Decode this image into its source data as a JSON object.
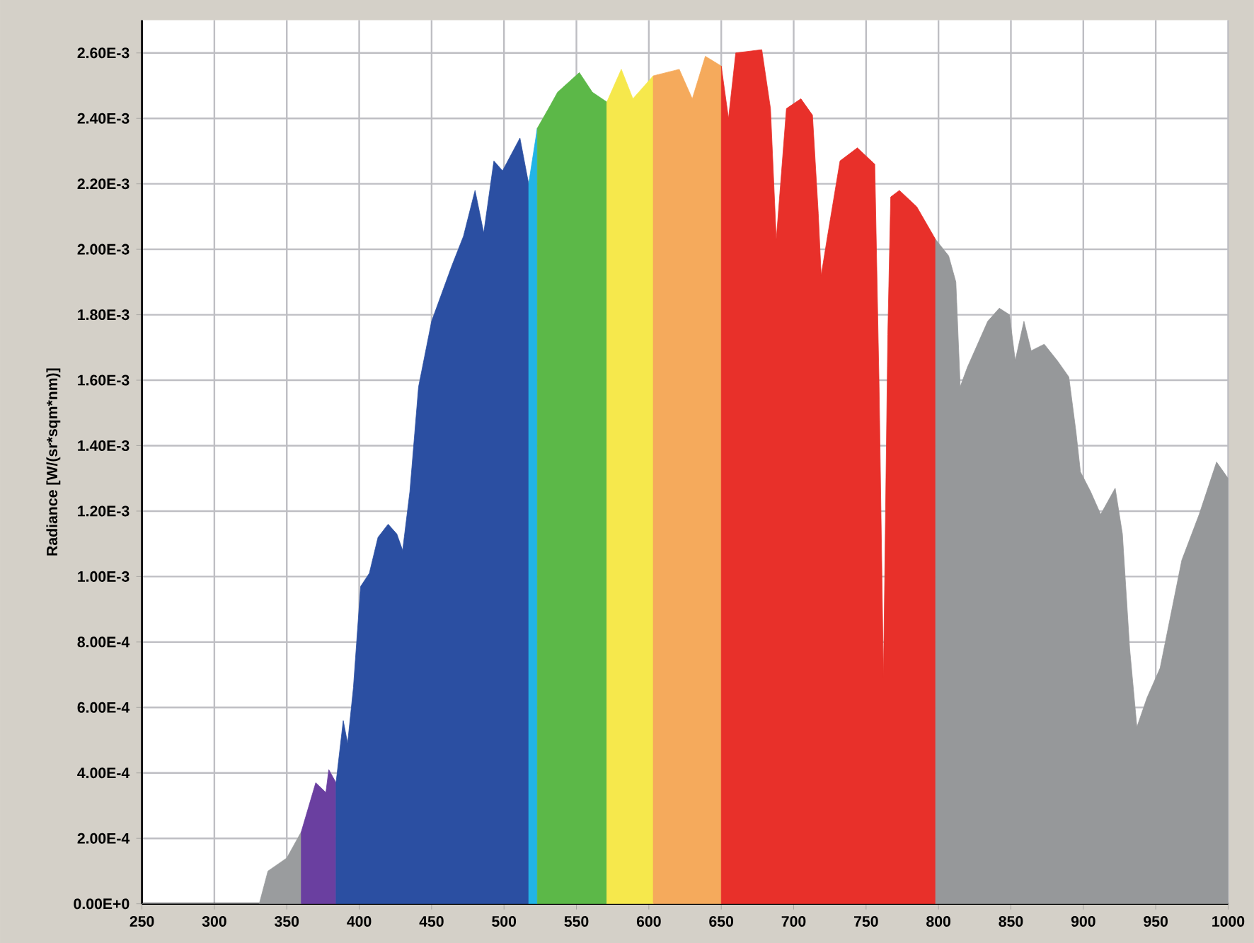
{
  "chart_data": {
    "type": "area",
    "ylabel": "Radiance [W/(sr*sqm*nm)]",
    "xlim": [
      250,
      1000
    ],
    "ylim": [
      0,
      0.0027
    ],
    "xticks": [
      250,
      300,
      350,
      400,
      450,
      500,
      550,
      600,
      650,
      700,
      750,
      800,
      850,
      900,
      950,
      1000
    ],
    "yticks": [
      {
        "value": 0,
        "label": "0.00E+0"
      },
      {
        "value": 0.0002,
        "label": "2.00E-4"
      },
      {
        "value": 0.0004,
        "label": "4.00E-4"
      },
      {
        "value": 0.0006,
        "label": "6.00E-4"
      },
      {
        "value": 0.0008,
        "label": "8.00E-4"
      },
      {
        "value": 0.001,
        "label": "1.00E-3"
      },
      {
        "value": 0.0012,
        "label": "1.20E-3"
      },
      {
        "value": 0.0014,
        "label": "1.40E-3"
      },
      {
        "value": 0.0016,
        "label": "1.60E-3"
      },
      {
        "value": 0.0018,
        "label": "1.80E-3"
      },
      {
        "value": 0.002,
        "label": "2.00E-3"
      },
      {
        "value": 0.0022,
        "label": "2.20E-3"
      },
      {
        "value": 0.0024,
        "label": "2.40E-3"
      },
      {
        "value": 0.0026,
        "label": "2.60E-3"
      }
    ],
    "grid": true,
    "series": [
      {
        "color": "#9a9c9e",
        "x": [
          250,
          260,
          275,
          290,
          310,
          325,
          331,
          337,
          350,
          360
        ],
        "values": [
          0.0,
          0.0,
          0.0,
          0.0,
          0.0,
          0.0,
          0.0,
          0.0001,
          0.00014,
          0.00022
        ]
      },
      {
        "color": "#6a3fa0",
        "x": [
          360,
          370,
          377,
          379,
          384
        ],
        "values": [
          0.00022,
          0.00037,
          0.00034,
          0.00041,
          0.00037
        ]
      },
      {
        "color": "#2b4fa2",
        "x": [
          384,
          389,
          392,
          396,
          401,
          407,
          413,
          420,
          426,
          430,
          435,
          441,
          450,
          464,
          472,
          480,
          486,
          493,
          499,
          511,
          517
        ],
        "values": [
          0.00037,
          0.00056,
          0.00049,
          0.00066,
          0.00097,
          0.00101,
          0.00112,
          0.00116,
          0.00113,
          0.00108,
          0.00126,
          0.00158,
          0.00178,
          0.00195,
          0.00204,
          0.00218,
          0.00205,
          0.00227,
          0.00224,
          0.00234,
          0.0022
        ]
      },
      {
        "color": "#22b4e6",
        "x": [
          517,
          523
        ],
        "values": [
          0.0022,
          0.00237
        ]
      },
      {
        "color": "#5cb848",
        "x": [
          523,
          532,
          537,
          552,
          561,
          571
        ],
        "values": [
          0.00237,
          0.00244,
          0.00248,
          0.00254,
          0.00248,
          0.00245
        ]
      },
      {
        "color": "#f6e84c",
        "x": [
          571,
          581,
          589,
          603
        ],
        "values": [
          0.00245,
          0.00255,
          0.00246,
          0.00253
        ]
      },
      {
        "color": "#f5aa5c",
        "x": [
          603,
          621,
          630,
          639,
          650
        ],
        "values": [
          0.00253,
          0.00255,
          0.00246,
          0.00259,
          0.00256
        ]
      },
      {
        "color": "#e8302a",
        "x": [
          650,
          655,
          660,
          678,
          684,
          688,
          695,
          705,
          713,
          717,
          719,
          723,
          732,
          744,
          756,
          759,
          762,
          765,
          767,
          773,
          785,
          798
        ],
        "values": [
          0.00256,
          0.0024,
          0.0026,
          0.00261,
          0.00243,
          0.00203,
          0.00243,
          0.00246,
          0.00241,
          0.00211,
          0.00192,
          0.00203,
          0.00227,
          0.00231,
          0.00226,
          0.00158,
          0.00069,
          0.00174,
          0.00216,
          0.00218,
          0.00213,
          0.00203
        ]
      },
      {
        "color": "#96989a",
        "x": [
          798,
          807,
          812,
          815,
          820,
          825,
          834,
          842,
          849,
          853,
          859,
          864,
          873,
          882,
          890,
          895,
          898,
          905,
          912,
          922,
          927,
          932,
          937,
          944,
          953,
          968,
          980,
          992,
          1000
        ],
        "values": [
          0.00203,
          0.00198,
          0.0019,
          0.00158,
          0.00164,
          0.00169,
          0.00178,
          0.00182,
          0.0018,
          0.00166,
          0.00178,
          0.00169,
          0.00171,
          0.00166,
          0.00161,
          0.00144,
          0.00132,
          0.00126,
          0.00119,
          0.00127,
          0.00113,
          0.00078,
          0.00054,
          0.00063,
          0.00072,
          0.00105,
          0.00119,
          0.00135,
          0.0013
        ]
      }
    ]
  }
}
